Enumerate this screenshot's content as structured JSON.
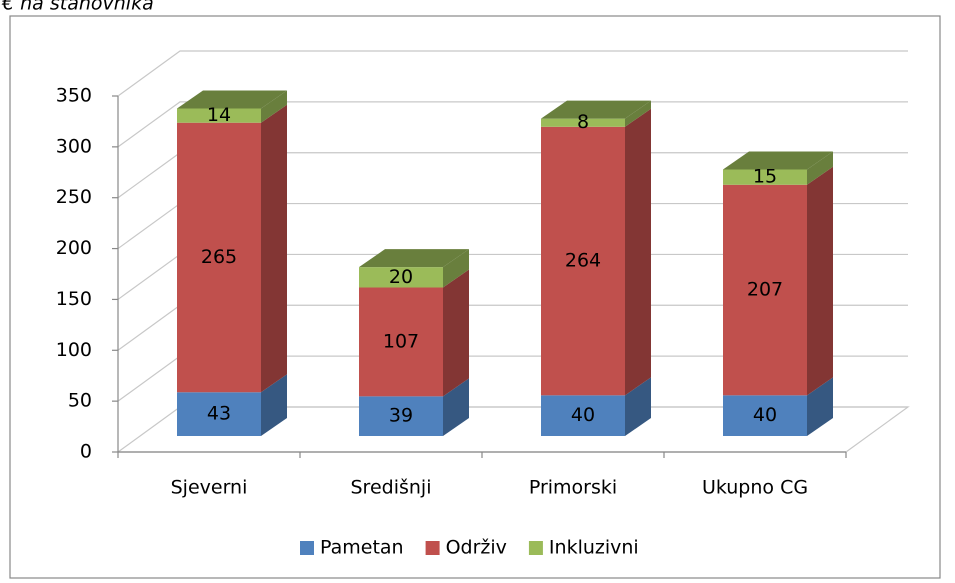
{
  "chart_data": {
    "type": "bar",
    "stacked": true,
    "title": "€ na stanovnika",
    "categories": [
      "Sjeverni",
      "Središnji",
      "Primorski",
      "Ukupno CG"
    ],
    "series": [
      {
        "name": "Pametan",
        "color": "#4f81bd",
        "values": [
          43,
          39,
          40,
          40
        ]
      },
      {
        "name": "Održiv",
        "color": "#c0504d",
        "values": [
          265,
          107,
          264,
          207
        ]
      },
      {
        "name": "Inkluzivni",
        "color": "#9bbb59",
        "values": [
          14,
          20,
          8,
          15
        ]
      }
    ],
    "ylim": [
      0,
      350
    ],
    "yticks": [
      0,
      50,
      100,
      150,
      200,
      250,
      300,
      350
    ],
    "grid": true,
    "legend": "bottom"
  }
}
